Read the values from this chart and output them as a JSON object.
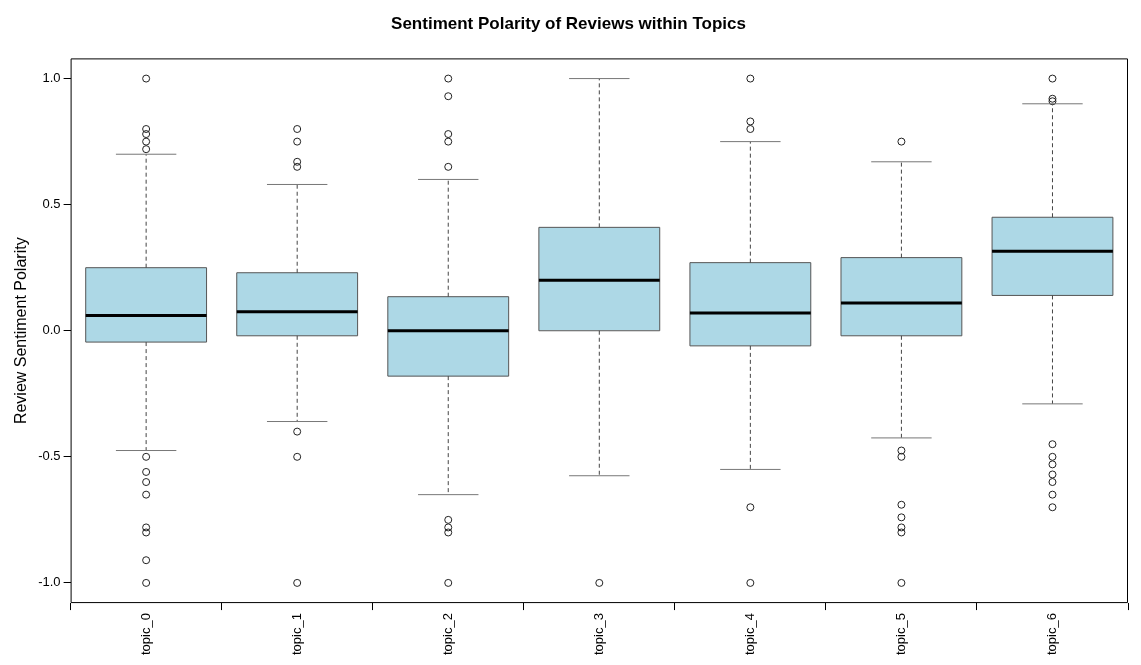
{
  "chart_data": {
    "type": "box",
    "title": "Sentiment Polarity of Reviews within Topics",
    "ylabel": "Review Sentiment Polarity",
    "categories": [
      "topic_0",
      "topic_1",
      "topic_2",
      "topic_3",
      "topic_4",
      "topic_5",
      "topic_6"
    ],
    "color": "#add8e6",
    "ylim": [
      -1.08,
      1.08
    ],
    "yticks": [
      {
        "value": -1,
        "label": "-1.0"
      },
      {
        "value": -0.5,
        "label": "-0.5"
      },
      {
        "value": 0,
        "label": "0.0"
      },
      0.5,
      {
        "value": 1,
        "label": "1.0"
      }
    ],
    "boxes": [
      {
        "low": -0.475,
        "q1": -0.045,
        "median": 0.06,
        "q3": 0.25,
        "high": 0.7,
        "outliers": [
          1.0,
          0.8,
          0.78,
          0.75,
          0.72,
          -0.5,
          -0.56,
          -0.6,
          -0.65,
          -0.78,
          -0.8,
          -0.91,
          -1.0
        ]
      },
      {
        "low": -0.36,
        "q1": -0.02,
        "median": 0.075,
        "q3": 0.23,
        "high": 0.58,
        "outliers": [
          0.8,
          0.75,
          0.67,
          0.65,
          -0.4,
          -0.5,
          -1.0
        ]
      },
      {
        "low": -0.65,
        "q1": -0.18,
        "median": 0.0,
        "q3": 0.135,
        "high": 0.6,
        "outliers": [
          1.0,
          0.93,
          0.78,
          0.75,
          0.65,
          -0.75,
          -0.78,
          -0.8,
          -1.0
        ]
      },
      {
        "low": -0.575,
        "q1": 0.0,
        "median": 0.2,
        "q3": 0.41,
        "high": 1.0,
        "outliers": [
          -1.0
        ]
      },
      {
        "low": -0.55,
        "q1": -0.06,
        "median": 0.07,
        "q3": 0.27,
        "high": 0.75,
        "outliers": [
          1.0,
          0.83,
          0.8,
          -0.7,
          -1.0
        ]
      },
      {
        "low": -0.425,
        "q1": -0.02,
        "median": 0.11,
        "q3": 0.29,
        "high": 0.67,
        "outliers": [
          0.75,
          -0.475,
          -0.5,
          -0.69,
          -0.74,
          -0.78,
          -0.8,
          -1.0
        ]
      },
      {
        "low": -0.29,
        "q1": 0.14,
        "median": 0.315,
        "q3": 0.45,
        "high": 0.9,
        "outliers": [
          1.0,
          0.92,
          0.91,
          -0.45,
          -0.5,
          -0.53,
          -0.57,
          -0.6,
          -0.65,
          -0.7
        ]
      }
    ]
  }
}
